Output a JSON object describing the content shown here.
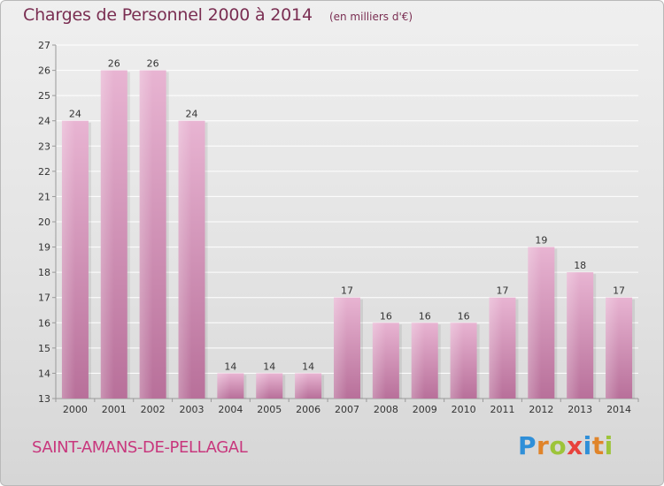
{
  "header": {
    "title": "Charges de Personnel 2000 à 2014",
    "subtitle": "(en milliers d'€)"
  },
  "footer": {
    "commune": "SAINT-AMANS-DE-PELLAGAL",
    "logo": "Proxiti"
  },
  "colors": {
    "bar_light": "#e8b4d2",
    "bar_dark": "#b8709a",
    "title": "#7a2e52",
    "commune": "#c8377d"
  },
  "chart_data": {
    "type": "bar",
    "title": "Charges de Personnel 2000 à 2014",
    "subtitle": "(en milliers d'€)",
    "categories": [
      "2000",
      "2001",
      "2002",
      "2003",
      "2004",
      "2005",
      "2006",
      "2007",
      "2008",
      "2009",
      "2010",
      "2011",
      "2012",
      "2013",
      "2014"
    ],
    "values": [
      24,
      26,
      26,
      24,
      14,
      14,
      14,
      17,
      16,
      16,
      16,
      17,
      19,
      18,
      17
    ],
    "ylim": [
      13,
      27
    ],
    "yticks": [
      13,
      14,
      15,
      16,
      17,
      18,
      19,
      20,
      21,
      22,
      23,
      24,
      25,
      26,
      27
    ],
    "grid": true,
    "xlabel": "",
    "ylabel": ""
  }
}
